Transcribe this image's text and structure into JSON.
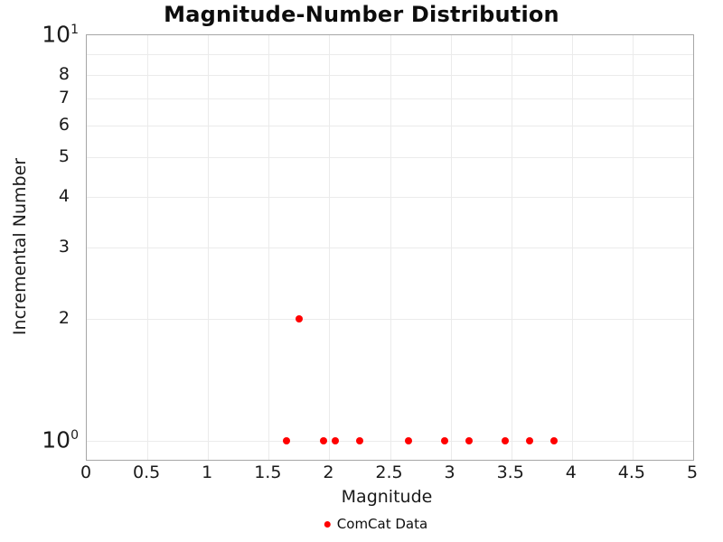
{
  "chart_data": {
    "type": "scatter",
    "title": "Magnitude-Number Distribution",
    "xlabel": "Magnitude",
    "ylabel": "Incremental Number",
    "xlim": [
      0,
      5
    ],
    "ylim": [
      1,
      10
    ],
    "yscale": "log",
    "grid": true,
    "x_ticks": [
      0,
      0.5,
      1,
      1.5,
      2,
      2.5,
      3,
      3.5,
      4,
      4.5,
      5
    ],
    "x_tick_labels": [
      "0",
      "0.5",
      "1",
      "1.5",
      "2",
      "2.5",
      "3",
      "3.5",
      "4",
      "4.5",
      "5"
    ],
    "y_ticks": [
      {
        "value": 1,
        "label": "10^0",
        "major": true
      },
      {
        "value": 2,
        "label": "2",
        "major": false
      },
      {
        "value": 3,
        "label": "3",
        "major": false
      },
      {
        "value": 4,
        "label": "4",
        "major": false
      },
      {
        "value": 5,
        "label": "5",
        "major": false
      },
      {
        "value": 6,
        "label": "6",
        "major": false
      },
      {
        "value": 7,
        "label": "7",
        "major": false
      },
      {
        "value": 8,
        "label": "8",
        "major": false
      },
      {
        "value": 9,
        "label": "",
        "major": false
      },
      {
        "value": 10,
        "label": "10^1",
        "major": true
      }
    ],
    "series": [
      {
        "name": "ComCat Data",
        "marker": "circle",
        "color": "#ff0000",
        "points": [
          [
            1.65,
            1
          ],
          [
            1.75,
            2
          ],
          [
            1.95,
            1
          ],
          [
            2.05,
            1
          ],
          [
            2.25,
            1
          ],
          [
            2.65,
            1
          ],
          [
            2.95,
            1
          ],
          [
            3.15,
            1
          ],
          [
            3.45,
            1
          ],
          [
            3.65,
            1
          ],
          [
            3.85,
            1
          ]
        ]
      }
    ],
    "legend": {
      "position": "bottom-center",
      "entries": [
        {
          "label": "ComCat Data",
          "color": "#ff0000",
          "marker": "circle"
        }
      ]
    },
    "colors": {
      "point": "#ff0000",
      "grid": "#ebebeb",
      "axis_border": "#a6a6a6",
      "text": "#1a1a1a"
    }
  }
}
